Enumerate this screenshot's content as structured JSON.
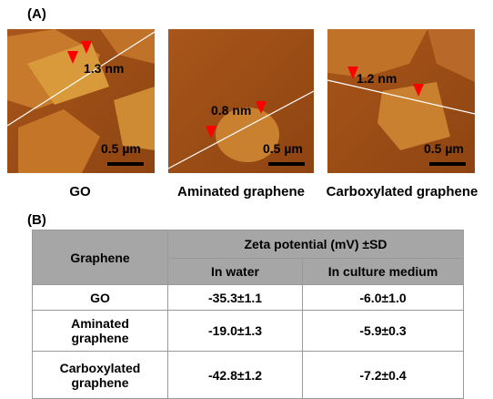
{
  "panel_a": {
    "label": "(A)",
    "images": [
      {
        "height_label": "1.3 nm",
        "scale_label": "0.5 µm",
        "caption": "GO"
      },
      {
        "height_label": "0.8 nm",
        "scale_label": "0.5 µm",
        "caption": "Aminated graphene"
      },
      {
        "height_label": "1.2 nm",
        "scale_label": "0.5 µm",
        "caption": "Carboxylated graphene"
      }
    ]
  },
  "panel_b": {
    "label": "(B)",
    "table": {
      "header": {
        "row_header": "Graphene",
        "group": "Zeta potential (mV) ±SD",
        "columns": [
          "In water",
          "In culture medium"
        ]
      },
      "rows": [
        [
          "GO",
          "-35.3±1.1",
          "-6.0±1.0"
        ],
        [
          "Aminated graphene",
          "-19.0±1.3",
          "-5.9±0.3"
        ],
        [
          "Carboxylated graphene",
          "-42.8±1.2",
          "-7.2±0.4"
        ]
      ]
    }
  }
}
